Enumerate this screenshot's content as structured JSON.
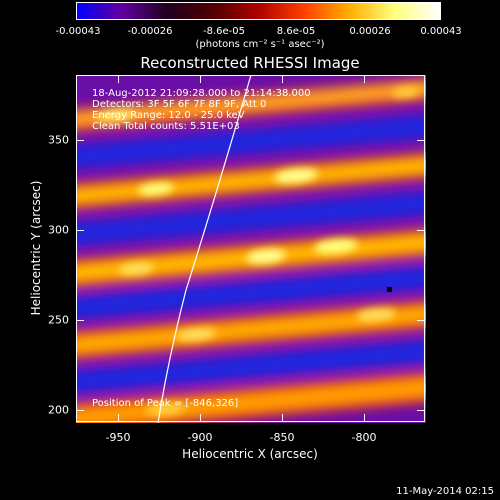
{
  "colorbar": {
    "tick_labels": [
      "-0.00043",
      "-0.00026",
      "-8.6e-05",
      "8.6e-05",
      "0.00026",
      "0.00043"
    ],
    "unit_label": "(photons cm⁻² s⁻¹ asec⁻²)",
    "colors": [
      "#0000ff",
      "#6000a0",
      "#200020",
      "#500000",
      "#b00000",
      "#ff4000",
      "#ffb000",
      "#ffff80",
      "#ffffff"
    ]
  },
  "title": "Reconstructed RHESSI Image",
  "info": {
    "time_range": "18-Aug-2012 21:09:28.000 to 21:14:38.000",
    "detectors": "Detectors: 3F 5F 6F 7F 8F 9F, Att 0",
    "energy": "Energy Range: 12.0 - 25.0 keV",
    "method": "Clean    Total counts: 5.51E+03",
    "peak": "Position of Peak = [-846,326]"
  },
  "axes": {
    "x_title": "Heliocentric X (arcsec)",
    "y_title": "Heliocentric Y (arcsec)",
    "x_ticks": [
      "-950",
      "-900",
      "-850",
      "-800"
    ],
    "y_ticks": [
      "200",
      "250",
      "300",
      "350"
    ]
  },
  "footer": "11-May-2014 02:15"
}
